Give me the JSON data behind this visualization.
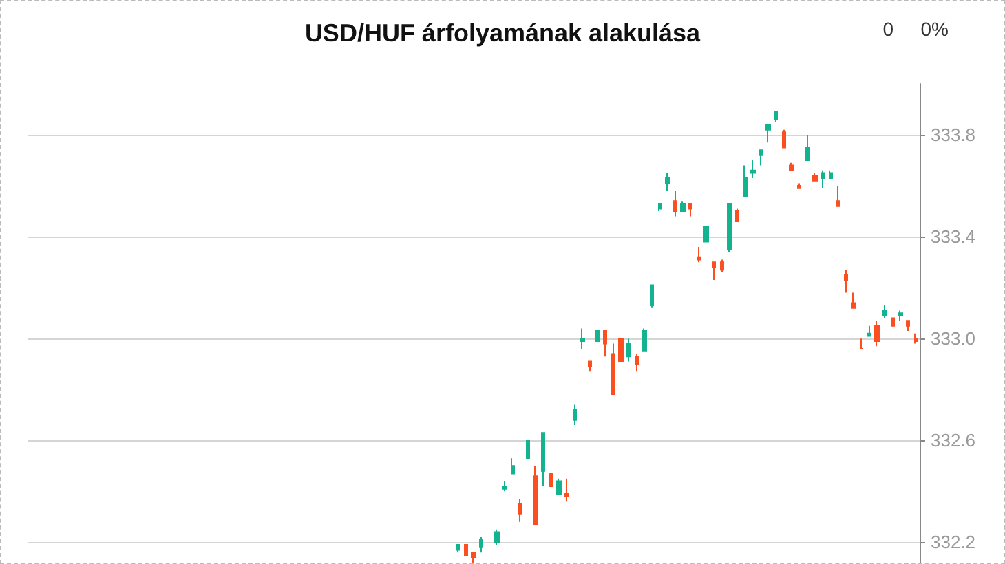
{
  "chart_data": {
    "type": "candlestick",
    "title": "USD/HUF árfolyamának alakulása",
    "annotations": [
      "0",
      "0%"
    ],
    "categories": [
      null,
      null,
      null,
      null,
      null,
      null,
      null,
      null,
      null,
      null,
      null,
      null,
      null,
      null,
      null,
      null,
      null,
      null,
      null,
      null,
      null,
      null,
      null,
      null,
      null,
      null,
      null,
      null,
      null,
      null,
      null,
      null,
      null,
      null,
      null,
      null,
      null,
      null,
      null,
      null,
      null,
      null,
      null,
      null,
      null,
      null,
      null,
      null,
      null,
      null,
      null,
      null,
      null,
      null,
      null,
      null,
      null,
      null,
      null,
      null,
      null,
      null,
      null,
      null,
      null,
      null,
      null,
      null,
      null,
      null,
      null,
      null,
      null,
      null,
      null,
      null,
      null,
      null,
      null,
      null,
      null,
      null,
      null,
      null,
      null,
      null,
      null,
      null,
      null,
      null,
      null,
      null,
      null,
      null,
      null,
      null,
      null,
      null,
      null,
      null,
      null,
      null,
      null,
      null,
      null,
      null,
      null,
      null,
      null,
      null,
      null,
      null,
      null,
      null,
      null
    ],
    "ohlc": [
      null,
      null,
      null,
      null,
      null,
      null,
      null,
      null,
      null,
      null,
      null,
      null,
      null,
      null,
      null,
      null,
      null,
      null,
      null,
      null,
      null,
      null,
      null,
      null,
      null,
      null,
      null,
      null,
      null,
      null,
      null,
      null,
      null,
      null,
      null,
      null,
      null,
      null,
      null,
      null,
      null,
      null,
      null,
      null,
      null,
      null,
      null,
      null,
      null,
      null,
      null,
      null,
      null,
      null,
      null,
      [
        332.17,
        332.19,
        332.16,
        332.19
      ],
      [
        332.19,
        332.19,
        332.15,
        332.15
      ],
      [
        332.16,
        332.16,
        332.12,
        332.14
      ],
      [
        332.18,
        332.22,
        332.16,
        332.21
      ],
      null,
      [
        332.2,
        332.25,
        332.19,
        332.24
      ],
      [
        332.41,
        332.44,
        332.4,
        332.42
      ],
      [
        332.47,
        332.53,
        332.47,
        332.5
      ],
      [
        332.35,
        332.37,
        332.28,
        332.31
      ],
      [
        332.53,
        332.6,
        332.53,
        332.6
      ],
      [
        332.46,
        332.5,
        332.27,
        332.27
      ],
      [
        332.48,
        332.63,
        332.42,
        332.63
      ],
      [
        332.47,
        332.47,
        332.42,
        332.42
      ],
      [
        332.39,
        332.45,
        332.39,
        332.44
      ],
      [
        332.39,
        332.45,
        332.36,
        332.38
      ],
      [
        332.68,
        332.74,
        332.66,
        332.72
      ],
      [
        332.99,
        333.04,
        332.96,
        333.0
      ],
      [
        332.91,
        332.91,
        332.87,
        332.89
      ],
      [
        332.99,
        333.03,
        332.99,
        333.03
      ],
      [
        333.03,
        333.03,
        332.93,
        332.98
      ],
      [
        332.94,
        332.98,
        332.78,
        332.78
      ],
      [
        333.0,
        333.0,
        332.91,
        332.91
      ],
      [
        332.93,
        333.0,
        332.91,
        332.98
      ],
      [
        332.93,
        332.94,
        332.87,
        332.9
      ],
      [
        332.95,
        333.04,
        332.95,
        333.03
      ],
      [
        333.13,
        333.21,
        333.12,
        333.21
      ],
      [
        333.51,
        333.53,
        333.5,
        333.53
      ],
      [
        333.61,
        333.65,
        333.58,
        333.63
      ],
      [
        333.54,
        333.58,
        333.48,
        333.5
      ],
      [
        333.5,
        333.54,
        333.5,
        333.53
      ],
      [
        333.53,
        333.53,
        333.48,
        333.51
      ],
      [
        333.32,
        333.36,
        333.3,
        333.31
      ],
      [
        333.38,
        333.44,
        333.38,
        333.44
      ],
      [
        333.3,
        333.3,
        333.23,
        333.28
      ],
      [
        333.3,
        333.31,
        333.26,
        333.27
      ],
      [
        333.35,
        333.53,
        333.34,
        333.53
      ],
      [
        333.5,
        333.51,
        333.46,
        333.46
      ],
      [
        333.56,
        333.68,
        333.56,
        333.63
      ],
      [
        333.65,
        333.7,
        333.63,
        333.66
      ],
      [
        333.72,
        333.74,
        333.68,
        333.74
      ],
      [
        333.82,
        333.84,
        333.77,
        333.84
      ],
      [
        333.86,
        333.89,
        333.85,
        333.89
      ],
      [
        333.81,
        333.82,
        333.75,
        333.75
      ],
      [
        333.68,
        333.69,
        333.66,
        333.66
      ],
      [
        333.6,
        333.61,
        333.59,
        333.59
      ],
      [
        333.7,
        333.8,
        333.7,
        333.75
      ],
      [
        333.64,
        333.65,
        333.62,
        333.62
      ],
      [
        333.63,
        333.66,
        333.59,
        333.65
      ],
      [
        333.63,
        333.66,
        333.63,
        333.65
      ],
      [
        333.54,
        333.6,
        333.52,
        333.52
      ],
      [
        333.25,
        333.27,
        333.18,
        333.23
      ],
      [
        333.14,
        333.18,
        333.12,
        333.12
      ],
      [
        332.96,
        333.0,
        332.96,
        332.96
      ],
      [
        333.01,
        333.05,
        333.01,
        333.02
      ],
      [
        333.05,
        333.07,
        332.97,
        332.99
      ],
      [
        333.09,
        333.13,
        333.08,
        333.11
      ],
      [
        333.08,
        333.08,
        333.05,
        333.05
      ],
      [
        333.09,
        333.11,
        333.07,
        333.1
      ],
      [
        333.07,
        333.07,
        333.03,
        333.05
      ],
      [
        333.0,
        333.02,
        332.98,
        332.99
      ]
    ],
    "colors": [
      null,
      null,
      null,
      null,
      null,
      null,
      null,
      null,
      null,
      null,
      null,
      null,
      null,
      null,
      null,
      null,
      null,
      null,
      null,
      null,
      null,
      null,
      null,
      null,
      null,
      null,
      null,
      null,
      null,
      null,
      null,
      null,
      null,
      null,
      null,
      null,
      null,
      null,
      null,
      null,
      null,
      null,
      null,
      null,
      null,
      null,
      null,
      null,
      null,
      null,
      null,
      null,
      null,
      null,
      null,
      "#14b38f",
      "#fc4f21",
      "#fc4f21",
      "#14b38f",
      null,
      "#14b38f",
      "#14b38f",
      "#14b38f",
      "#fc4f21",
      "#14b38f",
      "#fc4f21",
      "#14b38f",
      "#fc4f21",
      "#14b38f",
      "#fc4f21",
      "#14b38f",
      "#14b38f",
      "#fc4f21",
      "#14b38f",
      "#fc4f21",
      "#fc4f21",
      "#fc4f21",
      "#14b38f",
      "#fc4f21",
      "#14b38f",
      "#14b38f",
      "#14b38f",
      "#14b38f",
      "#fc4f21",
      "#14b38f",
      "#fc4f21",
      "#fc4f21",
      "#14b38f",
      "#fc4f21",
      "#fc4f21",
      "#14b38f",
      "#fc4f21",
      "#14b38f",
      "#14b38f",
      "#14b38f",
      "#14b38f",
      "#14b38f",
      "#fc4f21",
      "#fc4f21",
      "#fc4f21",
      "#14b38f",
      "#fc4f21",
      "#14b38f",
      "#14b38f",
      "#fc4f21",
      "#fc4f21",
      "#fc4f21",
      "#fc4f21",
      "#14b38f",
      "#fc4f21",
      "#14b38f",
      "#fc4f21",
      "#14b38f",
      "#fc4f21",
      "#fc4f21"
    ],
    "ylim": [
      332.12,
      334.0
    ],
    "yticks": [
      332.2,
      332.6,
      {
        "value": 333,
        "label": "333.0"
      },
      333.4,
      333.8
    ],
    "grid": "y",
    "tick_labels": "y"
  }
}
